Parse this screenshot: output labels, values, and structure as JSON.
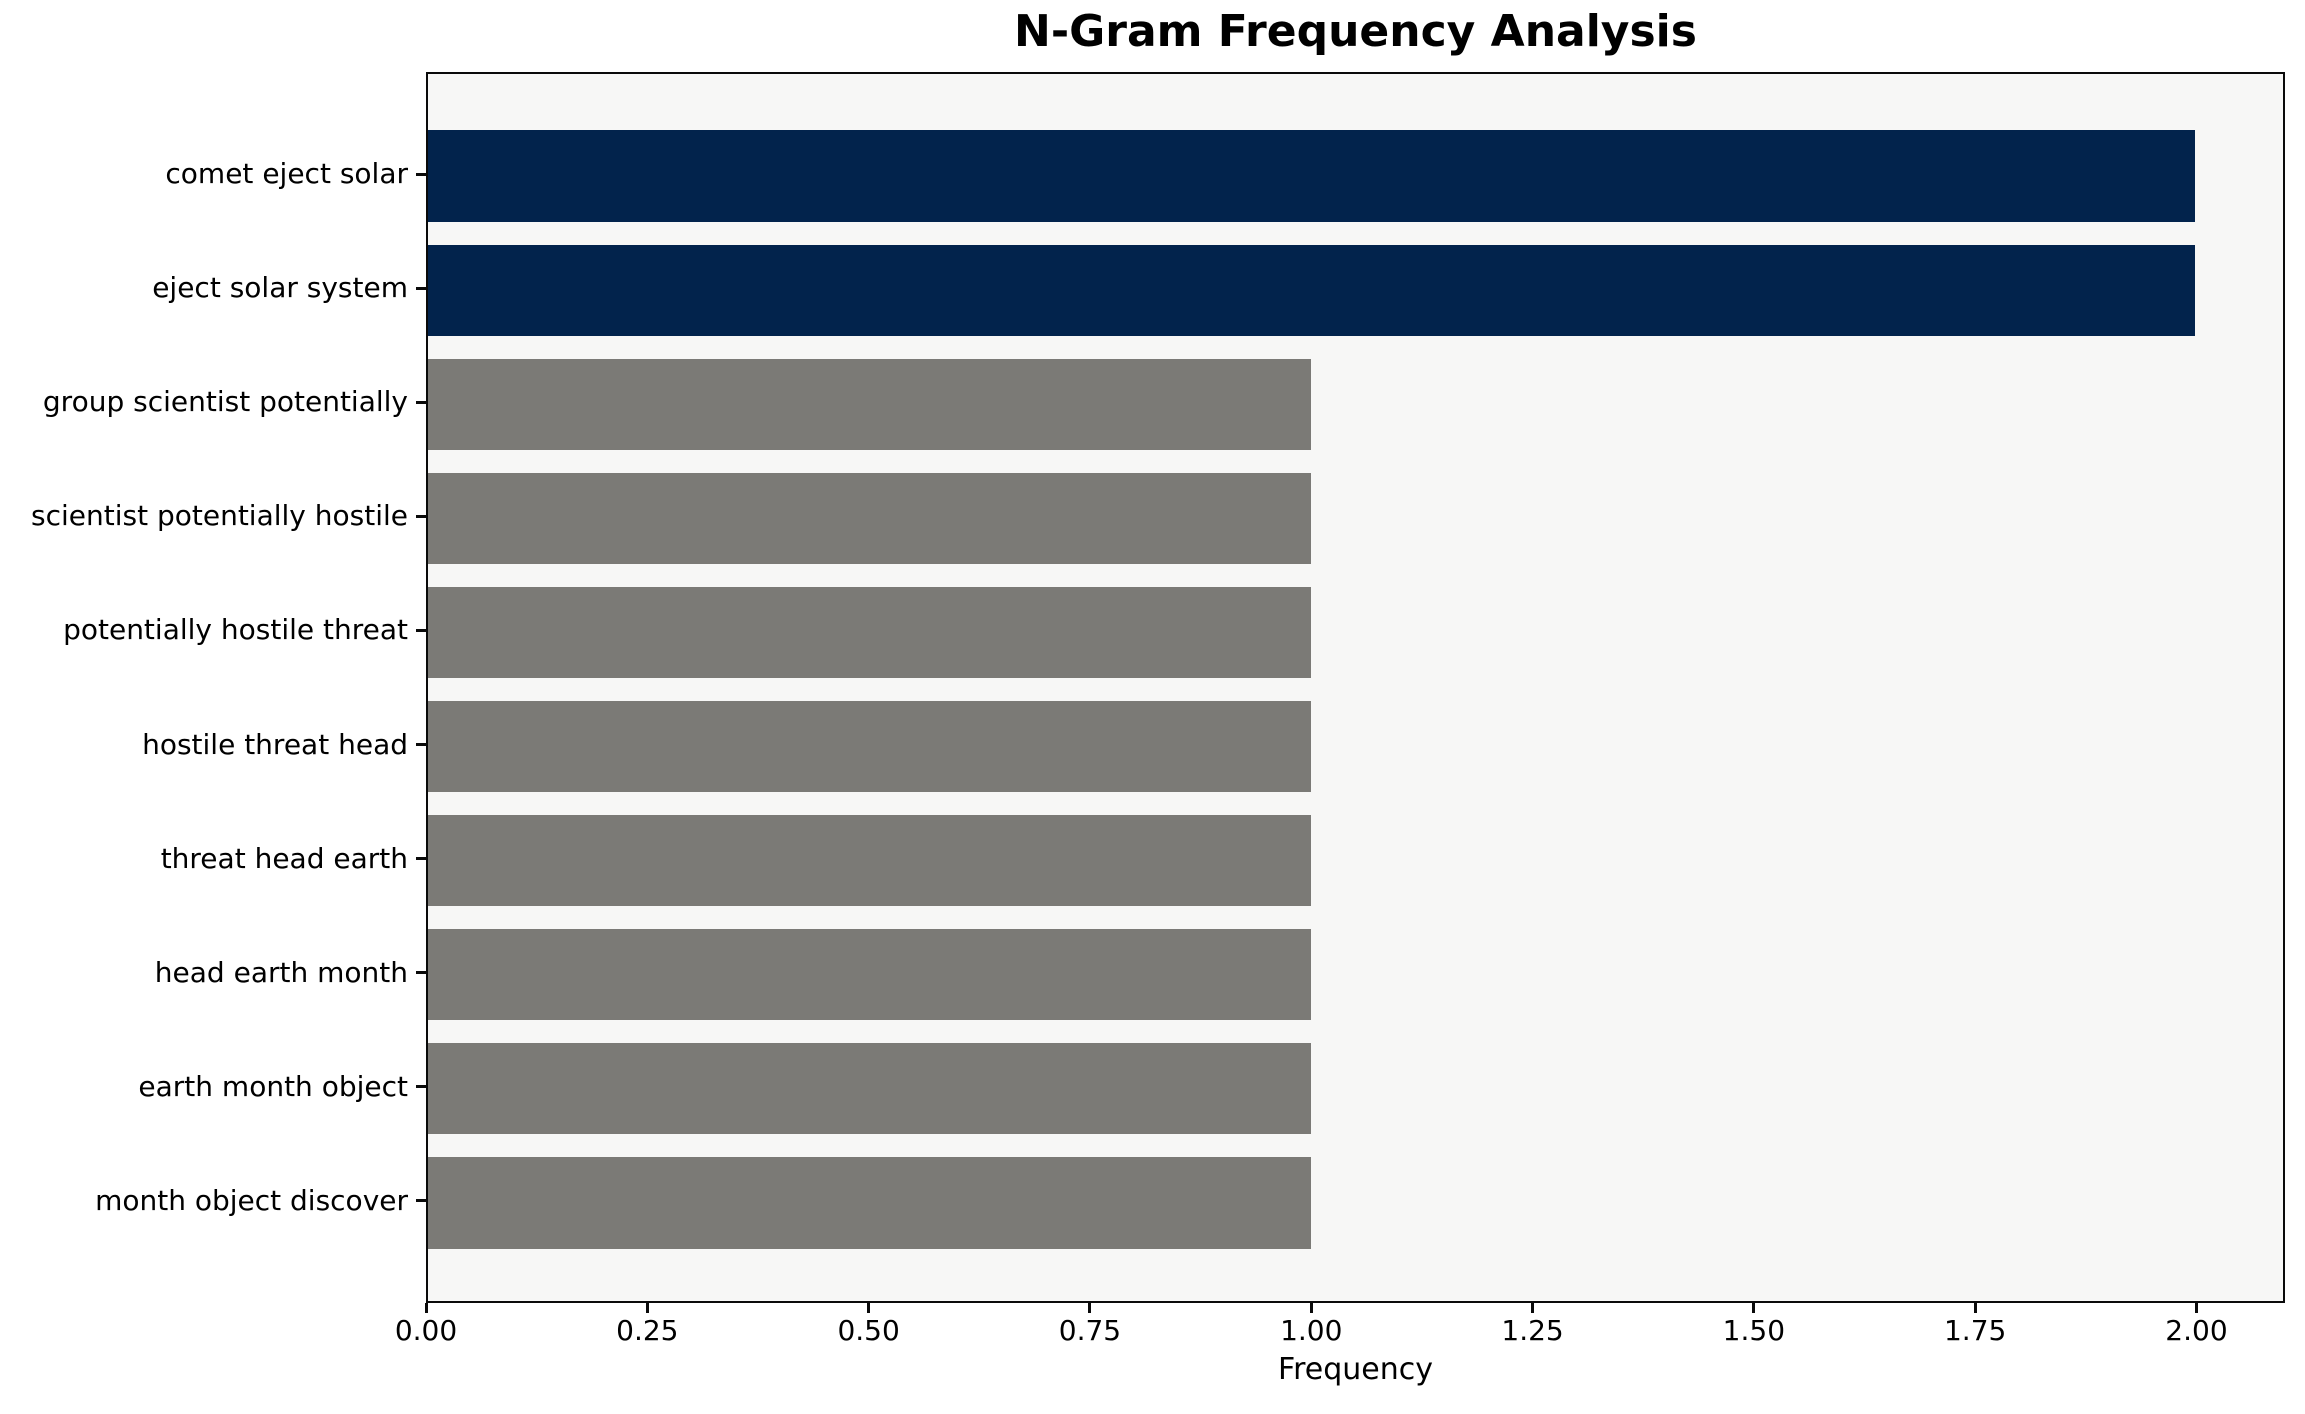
{
  "chart_data": {
    "type": "bar",
    "orientation": "horizontal",
    "title": "N-Gram Frequency Analysis",
    "xlabel": "Frequency",
    "ylabel": "",
    "categories": [
      "comet eject solar",
      "eject solar system",
      "group scientist potentially",
      "scientist potentially hostile",
      "potentially hostile threat",
      "hostile threat head",
      "threat head earth",
      "head earth month",
      "earth month object",
      "month object discover"
    ],
    "values": [
      2,
      2,
      1,
      1,
      1,
      1,
      1,
      1,
      1,
      1
    ],
    "bar_colors": [
      "#02234C",
      "#02234C",
      "#7B7A76",
      "#7B7A76",
      "#7B7A76",
      "#7B7A76",
      "#7B7A76",
      "#7B7A76",
      "#7B7A76",
      "#7B7A76"
    ],
    "x_tick_labels": [
      "0.00",
      "0.25",
      "0.50",
      "0.75",
      "1.00",
      "1.25",
      "1.50",
      "1.75",
      "2.00"
    ],
    "x_tick_values": [
      0,
      0.25,
      0.5,
      0.75,
      1.0,
      1.25,
      1.5,
      1.75,
      2.0
    ],
    "xlim": [
      0,
      2.1
    ],
    "grid": false,
    "legend": null,
    "colors": {
      "highlight_navy": "#02234C",
      "default_gray": "#7B7A76",
      "plot_background": "#F7F7F6",
      "figure_background": "#FFFFFF",
      "axis_border": "#0A0A0A"
    }
  }
}
